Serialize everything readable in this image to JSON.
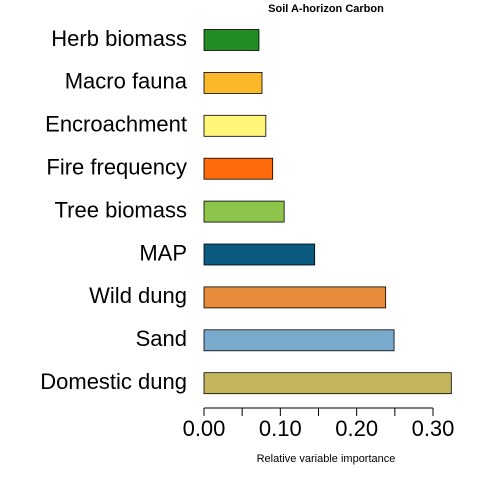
{
  "chart_data": {
    "type": "barh",
    "title": "Soil A-horizon Carbon",
    "xlabel": "Relative variable importance",
    "categories": [
      "Herb biomass",
      "Macro fauna",
      "Encroachment",
      "Fire frequency",
      "Tree biomass",
      "MAP",
      "Wild dung",
      "Sand",
      "Domestic dung"
    ],
    "values": [
      0.072,
      0.076,
      0.081,
      0.09,
      0.105,
      0.145,
      0.238,
      0.249,
      0.324
    ],
    "colors": [
      "#228b22",
      "#fbb829",
      "#fff67a",
      "#ff6a0a",
      "#8fc44a",
      "#0b5a80",
      "#e88b3a",
      "#7aaacb",
      "#c4b45a"
    ],
    "xlim": [
      0,
      0.3
    ],
    "xticks": [
      {
        "value": 0,
        "label": "0.00"
      },
      {
        "value": 0.1,
        "label": "0.10"
      },
      {
        "value": 0.2,
        "label": "0.20"
      },
      {
        "value": 0.3,
        "label": "0.30"
      }
    ],
    "xminorticks": [
      0.05,
      0.15,
      0.25
    ]
  }
}
